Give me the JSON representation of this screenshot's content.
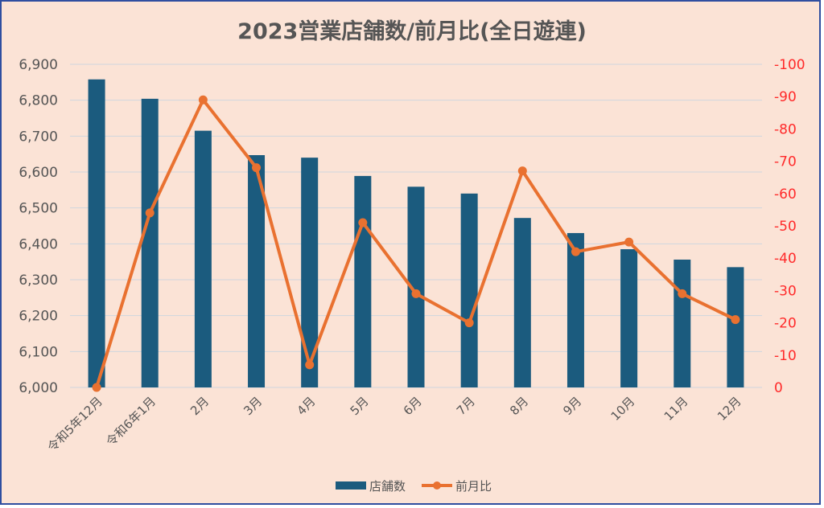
{
  "chart_data": {
    "type": "bar",
    "title": "2023営業店舗数/前月比(全日遊連)",
    "categories": [
      "令和5年12月",
      "令和6年1月",
      "2月",
      "3月",
      "4月",
      "5月",
      "6月",
      "7月",
      "8月",
      "9月",
      "10月",
      "11月",
      "12月"
    ],
    "series": [
      {
        "name": "店舗数",
        "type": "bar",
        "axis": "left",
        "color": "#1b5b7e",
        "values": [
          6858,
          6804,
          6715,
          6647,
          6640,
          6589,
          6559,
          6540,
          6472,
          6430,
          6385,
          6356,
          6335
        ]
      },
      {
        "name": "前月比",
        "type": "line",
        "axis": "right",
        "color": "#e97130",
        "values": [
          0,
          -54,
          -89,
          -68,
          -7,
          -51,
          -29,
          -20,
          -67,
          -42,
          -45,
          -29,
          -21
        ]
      }
    ],
    "y_left": {
      "min": 6000,
      "max": 6900,
      "step": 100,
      "ticks": [
        "6,000",
        "6,100",
        "6,200",
        "6,300",
        "6,400",
        "6,500",
        "6,600",
        "6,700",
        "6,800",
        "6,900"
      ]
    },
    "y_right": {
      "min": 0,
      "max": -100,
      "step": -10,
      "reversed": true,
      "color": "#ff2a2a",
      "ticks": [
        "0",
        "-10",
        "-20",
        "-30",
        "-40",
        "-50",
        "-60",
        "-70",
        "-80",
        "-90",
        "-100"
      ]
    },
    "grid": true,
    "legend_position": "bottom"
  }
}
